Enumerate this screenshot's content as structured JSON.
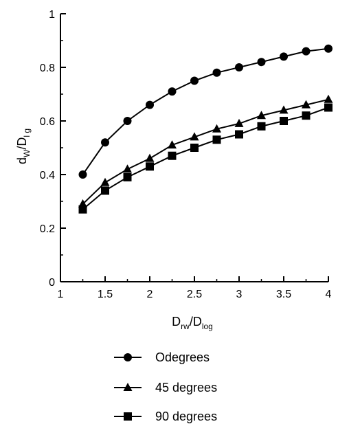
{
  "chart_data": {
    "type": "line",
    "xlabel": {
      "main": "D",
      "sub1": "rw",
      "slash": "/D",
      "sub2": "log"
    },
    "ylabel": {
      "main": "d",
      "sub1": "W",
      "slash": "/D",
      "sub2": "l g"
    },
    "xlim": [
      1,
      4
    ],
    "ylim": [
      0,
      1
    ],
    "x_ticks": [
      "1",
      "1.5",
      "2",
      "2.5",
      "3",
      "3.5",
      "4"
    ],
    "y_ticks": [
      "0",
      "0.2",
      "0.4",
      "0.6",
      "0.8",
      "1"
    ],
    "grid": false,
    "legend_position": "bottom",
    "x": [
      1.25,
      1.5,
      1.75,
      2.0,
      2.25,
      2.5,
      2.75,
      3.0,
      3.25,
      3.5,
      3.75,
      4.0
    ],
    "series": [
      {
        "name": "Odegrees",
        "marker": "circle",
        "values": [
          0.4,
          0.52,
          0.6,
          0.66,
          0.71,
          0.75,
          0.78,
          0.8,
          0.82,
          0.84,
          0.86,
          0.87
        ]
      },
      {
        "name": "45 degrees",
        "marker": "triangle",
        "values": [
          0.29,
          0.37,
          0.42,
          0.46,
          0.51,
          0.54,
          0.57,
          0.59,
          0.62,
          0.64,
          0.66,
          0.68
        ]
      },
      {
        "name": "90 degrees",
        "marker": "square",
        "values": [
          0.27,
          0.34,
          0.39,
          0.43,
          0.47,
          0.5,
          0.53,
          0.55,
          0.58,
          0.6,
          0.62,
          0.65
        ]
      }
    ]
  }
}
